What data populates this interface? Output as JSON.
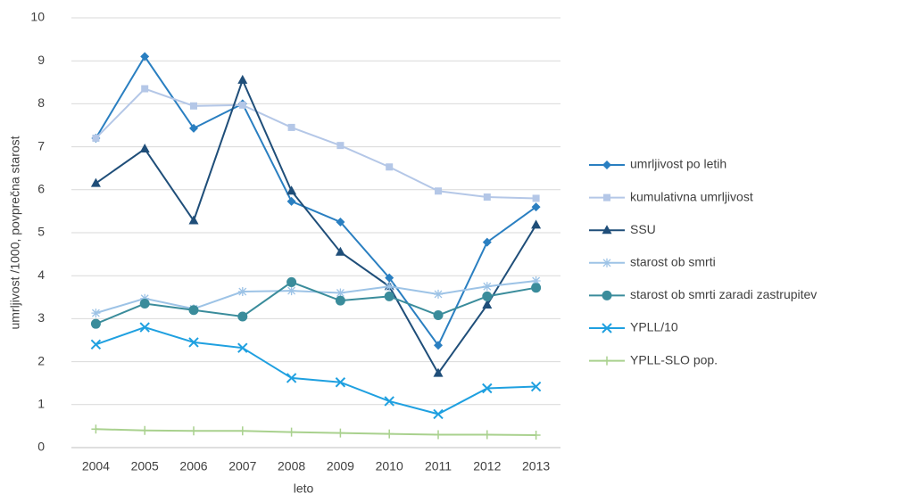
{
  "chart_data": {
    "type": "line",
    "ylabel": "umrljivost /1000, povprečna starost",
    "xlabel": "leto",
    "categories": [
      "2004",
      "2005",
      "2006",
      "2007",
      "2008",
      "2009",
      "2010",
      "2011",
      "2012",
      "2013"
    ],
    "ylim": [
      0,
      10
    ],
    "yticks": [
      0,
      1,
      2,
      3,
      4,
      5,
      6,
      7,
      8,
      9,
      10
    ],
    "grid": true,
    "legend": "right",
    "series": [
      {
        "name": "umrljivost po letih",
        "color": "#2a7fc1",
        "marker": "diamond",
        "values": [
          7.2,
          9.1,
          7.43,
          8.0,
          5.73,
          5.25,
          3.95,
          2.38,
          4.78,
          5.6
        ]
      },
      {
        "name": "kumulativna umrljivost",
        "color": "#b4c7e7",
        "marker": "square",
        "values": [
          7.2,
          8.35,
          7.95,
          7.97,
          7.45,
          7.03,
          6.53,
          5.97,
          5.83,
          5.8
        ]
      },
      {
        "name": "SSU",
        "color": "#1f4e79",
        "marker": "triangle",
        "values": [
          6.15,
          6.95,
          5.28,
          8.55,
          5.97,
          4.55,
          3.75,
          1.73,
          3.32,
          5.18
        ]
      },
      {
        "name": "starost ob smrti",
        "color": "#9dc3e6",
        "marker": "star",
        "values": [
          3.13,
          3.47,
          3.23,
          3.63,
          3.65,
          3.6,
          3.75,
          3.57,
          3.75,
          3.88
        ]
      },
      {
        "name": "starost ob smrti zaradi zastrupitev",
        "color": "#3a8c9b",
        "marker": "circle",
        "values": [
          2.88,
          3.35,
          3.2,
          3.05,
          3.85,
          3.42,
          3.52,
          3.08,
          3.52,
          3.72
        ]
      },
      {
        "name": "YPLL/10",
        "color": "#1fa0e0",
        "marker": "x",
        "values": [
          2.4,
          2.8,
          2.45,
          2.32,
          1.62,
          1.52,
          1.08,
          0.78,
          1.38,
          1.42
        ]
      },
      {
        "name": "YPLL-SLO pop.",
        "color": "#a9d18e",
        "marker": "plus",
        "values": [
          0.43,
          0.4,
          0.39,
          0.39,
          0.36,
          0.34,
          0.32,
          0.3,
          0.3,
          0.29
        ]
      }
    ]
  }
}
